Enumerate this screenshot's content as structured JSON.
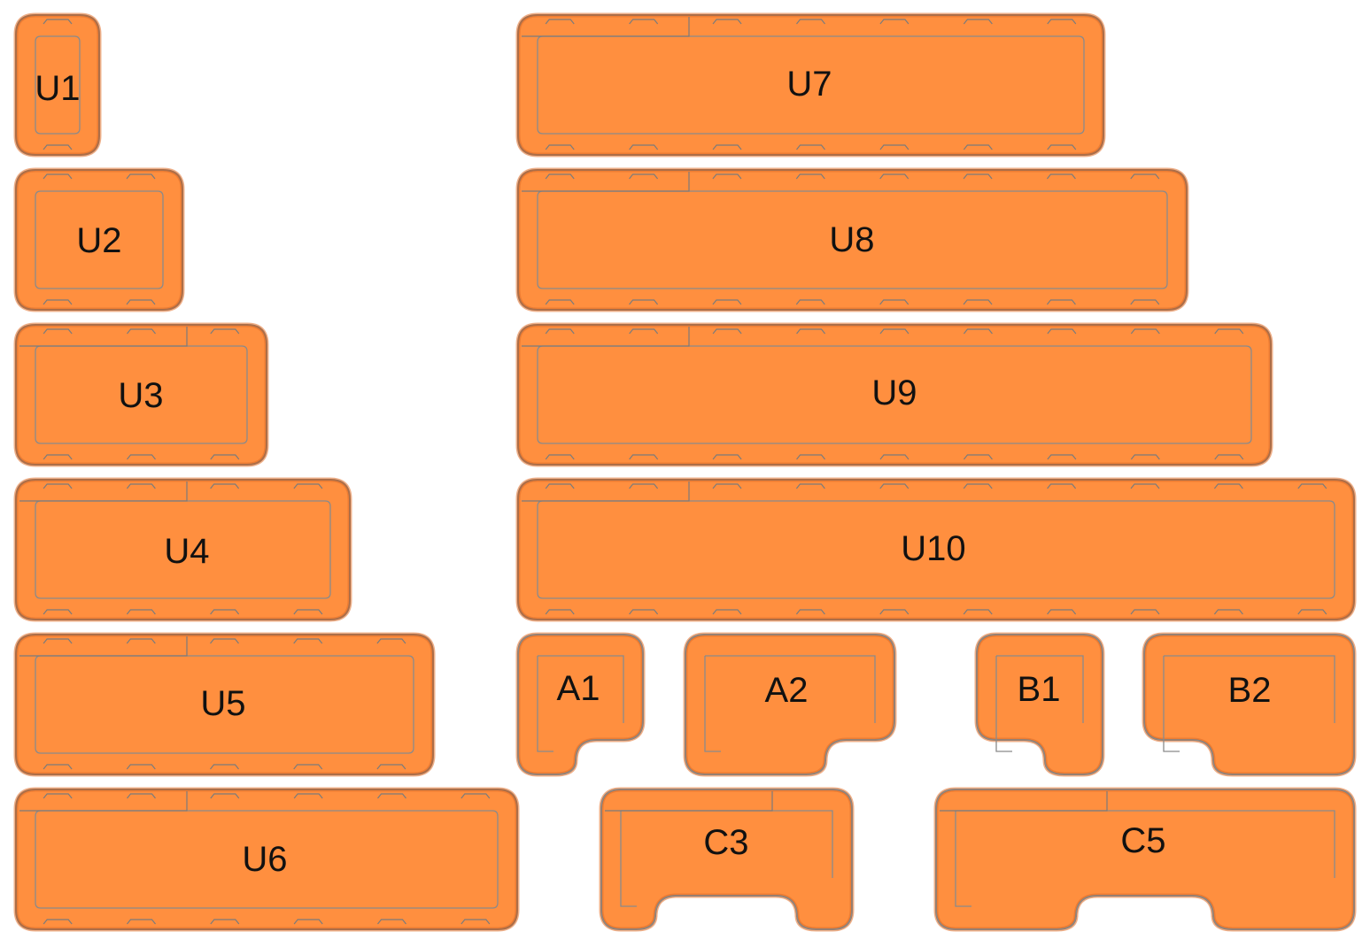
{
  "bins": [
    {
      "id": "U1",
      "label": "U1",
      "shape": "rect"
    },
    {
      "id": "U2",
      "label": "U2",
      "shape": "rect"
    },
    {
      "id": "U3",
      "label": "U3",
      "shape": "rect"
    },
    {
      "id": "U4",
      "label": "U4",
      "shape": "rect"
    },
    {
      "id": "U5",
      "label": "U5",
      "shape": "rect"
    },
    {
      "id": "U6",
      "label": "U6",
      "shape": "rect"
    },
    {
      "id": "U7",
      "label": "U7",
      "shape": "rect"
    },
    {
      "id": "U8",
      "label": "U8",
      "shape": "rect"
    },
    {
      "id": "U9",
      "label": "U9",
      "shape": "rect"
    },
    {
      "id": "U10",
      "label": "U10",
      "shape": "rect"
    },
    {
      "id": "A1",
      "label": "A1",
      "shape": "notch-bottom-right"
    },
    {
      "id": "A2",
      "label": "A2",
      "shape": "notch-bottom-right"
    },
    {
      "id": "B1",
      "label": "B1",
      "shape": "notch-bottom-left"
    },
    {
      "id": "B2",
      "label": "B2",
      "shape": "notch-bottom-left"
    },
    {
      "id": "C3",
      "label": "C3",
      "shape": "notch-bottom-center"
    },
    {
      "id": "C5",
      "label": "C5",
      "shape": "notch-bottom-center"
    }
  ],
  "colors": {
    "fill": "#ff8f3f",
    "outline": "#6e6e6e"
  }
}
